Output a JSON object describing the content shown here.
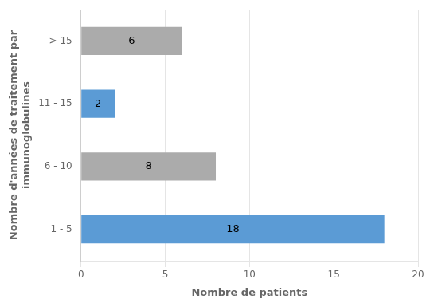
{
  "chart_data": {
    "type": "bar",
    "orientation": "horizontal",
    "categories": [
      "1 - 5",
      "6 - 10",
      "11 - 15",
      "> 15"
    ],
    "values": [
      18,
      8,
      2,
      6
    ],
    "colors": [
      "#5B9BD5",
      "#ABABAB",
      "#5B9BD5",
      "#ABABAB"
    ],
    "xlabel": "Nombre de patients",
    "ylabel": "Nombre d'années de traitement par\nimmunoglobulines",
    "xlim": [
      0,
      20
    ],
    "xticks": [
      0,
      5,
      10,
      15,
      20
    ],
    "grid": true,
    "data_labels": true
  }
}
